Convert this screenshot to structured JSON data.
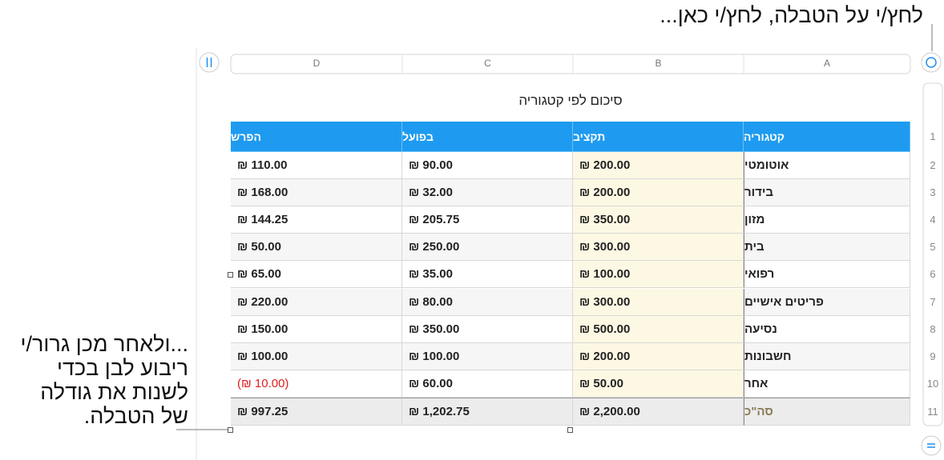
{
  "callouts": {
    "top": "לחץ/י על הטבלה, לחץ/י כאן...",
    "bottom": [
      "...ולאחר מכן גרור/י",
      "ריבוע לבן בכדי",
      "לשנות את גודלה",
      "של הטבלה."
    ]
  },
  "column_letters": [
    "A",
    "B",
    "C",
    "D"
  ],
  "row_numbers": [
    1,
    2,
    3,
    4,
    5,
    6,
    7,
    8,
    9,
    10,
    11
  ],
  "table": {
    "title": "סיכום לפי קטגוריה",
    "header": [
      "קטגוריה",
      "תקציב",
      "בפועל",
      "הפרש"
    ],
    "rows": [
      [
        "אוטומטי",
        "₪ 200.00",
        "₪ 90.00",
        "₪ 110.00"
      ],
      [
        "בידור",
        "₪ 200.00",
        "₪ 32.00",
        "₪ 168.00"
      ],
      [
        "מזון",
        "₪ 350.00",
        "₪ 205.75",
        "₪ 144.25"
      ],
      [
        "בית",
        "₪ 300.00",
        "₪ 250.00",
        "₪ 50.00"
      ],
      [
        "רפואי",
        "₪ 100.00",
        "₪ 35.00",
        "₪ 65.00"
      ],
      [
        "פריטים אישיים",
        "₪ 300.00",
        "₪ 80.00",
        "₪ 220.00"
      ],
      [
        "נסיעה",
        "₪ 500.00",
        "₪ 350.00",
        "₪ 150.00"
      ],
      [
        "חשבונות",
        "₪ 200.00",
        "₪ 100.00",
        "₪ 100.00"
      ],
      [
        "אחר",
        "₪ 50.00",
        "₪ 60.00",
        "(₪ 10.00)"
      ]
    ],
    "total": [
      "סה\"כ",
      "₪ 2,200.00",
      "₪ 1,202.75",
      "₪ 997.25"
    ]
  }
}
